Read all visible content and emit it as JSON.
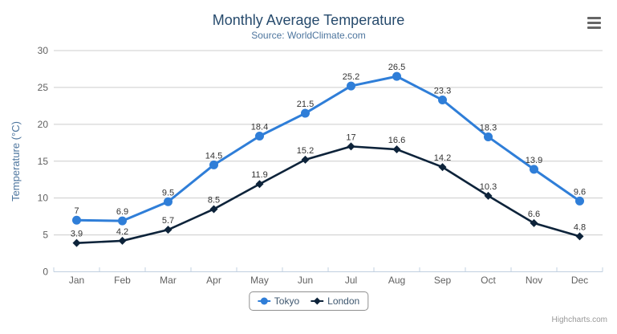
{
  "title": "Monthly Average Temperature",
  "subtitle": "Source: WorldClimate.com",
  "credits": "Highcharts.com",
  "colors": {
    "tokyo": "#2f7ed8",
    "london": "#0d233a",
    "grid": "#cccccc",
    "axis_line": "#c0d0e0",
    "axis_label": "#606060",
    "title": "#274b6d",
    "subtitle": "#4d759e",
    "axis_title": "#4d759e",
    "legend_text": "#3e576f",
    "data_label": "#333333",
    "credits": "#999999",
    "menu_icon": "#666666",
    "legend_border": "#909090"
  },
  "chart_data": {
    "type": "line",
    "title": "Monthly Average Temperature",
    "subtitle": "Source: WorldClimate.com",
    "categories": [
      "Jan",
      "Feb",
      "Mar",
      "Apr",
      "May",
      "Jun",
      "Jul",
      "Aug",
      "Sep",
      "Oct",
      "Nov",
      "Dec"
    ],
    "series": [
      {
        "name": "Tokyo",
        "marker": "circle",
        "color_key": "tokyo",
        "values": [
          7.0,
          6.9,
          9.5,
          14.5,
          18.4,
          21.5,
          25.2,
          26.5,
          23.3,
          18.3,
          13.9,
          9.6
        ]
      },
      {
        "name": "London",
        "marker": "diamond",
        "color_key": "london",
        "values": [
          3.9,
          4.2,
          5.7,
          8.5,
          11.9,
          15.2,
          17.0,
          16.6,
          14.2,
          10.3,
          6.6,
          4.8
        ]
      }
    ],
    "xlabel": "",
    "ylabel": "Temperature (°C)",
    "ylim": [
      0,
      30
    ],
    "ytick_step": 5,
    "grid": true,
    "legend_position": "bottom-center",
    "data_labels": true
  }
}
